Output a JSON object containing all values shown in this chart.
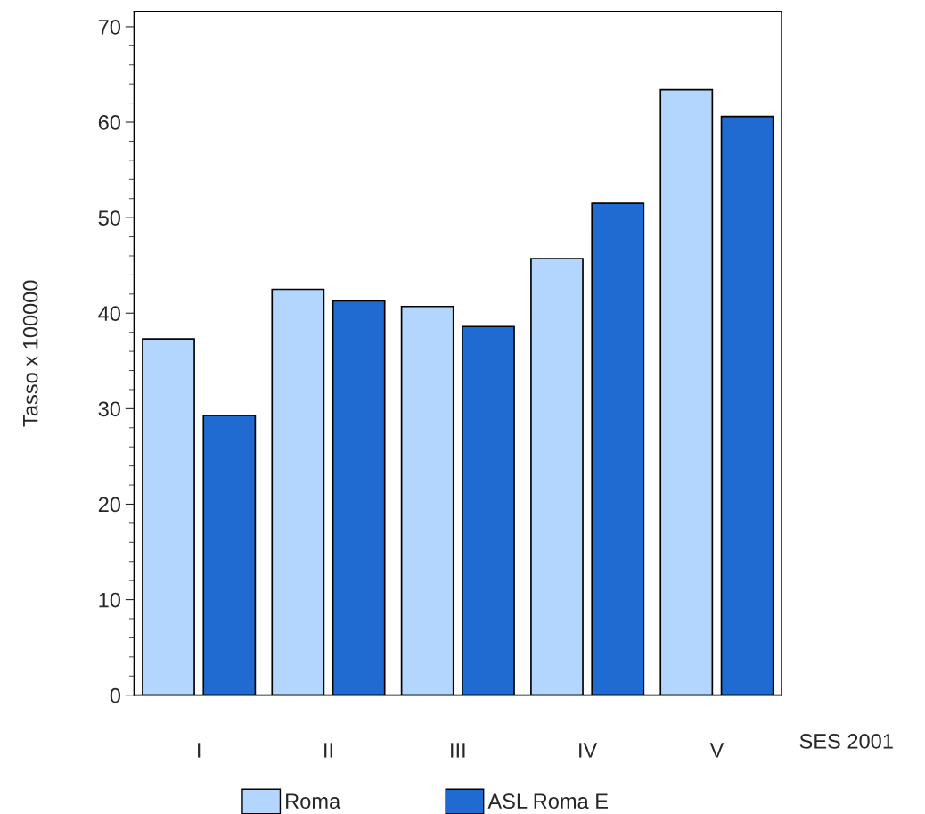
{
  "chart_data": {
    "type": "bar",
    "ylabel": "Tasso x 100000",
    "xlabel": "SES 2001",
    "categories": [
      "I",
      "II",
      "III",
      "IV",
      "V"
    ],
    "series": [
      {
        "name": "Roma",
        "color": "#b3d6ff",
        "values": [
          37.3,
          42.5,
          40.7,
          45.7,
          63.4
        ]
      },
      {
        "name": "ASL Roma E",
        "color": "#1f6bd1",
        "values": [
          29.3,
          41.3,
          38.6,
          51.5,
          60.6
        ]
      }
    ],
    "ylim": [
      0,
      71.6
    ],
    "yticks": [
      0,
      10,
      20,
      30,
      40,
      50,
      60,
      70
    ],
    "grid": false,
    "legend": "bottom"
  }
}
